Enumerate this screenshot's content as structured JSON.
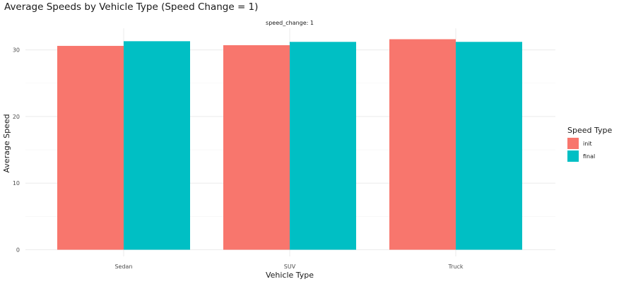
{
  "chart_data": {
    "type": "bar",
    "title": "Average Speeds by Vehicle Type (Speed Change = 1)",
    "facet_label": "speed_change: 1",
    "xlabel": "Vehicle Type",
    "ylabel": "Average Speed",
    "categories": [
      "Sedan",
      "SUV",
      "Truck"
    ],
    "series": [
      {
        "name": "init",
        "color": "#F8766D",
        "values": [
          30.6,
          30.7,
          31.6
        ]
      },
      {
        "name": "final",
        "color": "#00BFC4",
        "values": [
          31.3,
          31.2,
          31.2
        ]
      }
    ],
    "ylim": [
      0,
      33
    ],
    "y_ticks": [
      0,
      10,
      20,
      30
    ],
    "grid": true,
    "legend": {
      "title": "Speed Type",
      "position": "right"
    }
  }
}
